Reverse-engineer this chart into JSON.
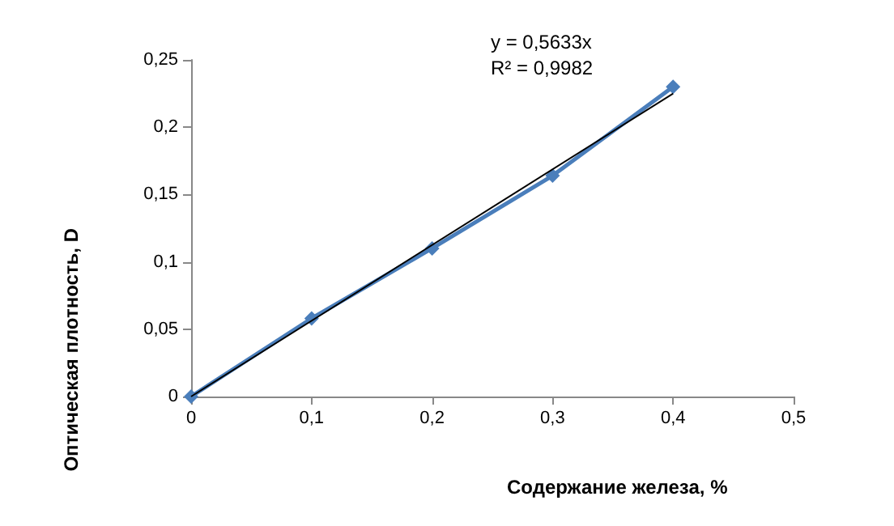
{
  "chart_data": {
    "type": "line",
    "xlabel": "Содержание железа, %",
    "ylabel": "Оптическая плотность, D",
    "annotations": [
      "y = 0,5633x",
      "R² = 0,9982"
    ],
    "marker": "diamond",
    "grid": false,
    "xlim": [
      0,
      0.5
    ],
    "xticks": [
      0,
      {
        "value": 0.1,
        "label": "0,1"
      },
      {
        "value": 0.2,
        "label": "0,2"
      },
      {
        "value": 0.3,
        "label": "0,3"
      },
      {
        "value": 0.4,
        "label": "0,4"
      },
      {
        "value": 0.5,
        "label": "0,5"
      }
    ],
    "ylim": [
      0,
      0.25
    ],
    "yticks": [
      0,
      {
        "value": 0.05,
        "label": "0,05"
      },
      {
        "value": 0.1,
        "label": "0,1"
      },
      {
        "value": 0.15,
        "label": "0,15"
      },
      {
        "value": 0.2,
        "label": "0,2"
      },
      {
        "value": 0.25,
        "label": "0,25"
      }
    ],
    "series": [
      {
        "color": "#4a7ebb",
        "x": [
          0,
          0.1,
          0.2,
          0.3,
          0.4
        ],
        "values": [
          0,
          0.058,
          0.11,
          0.164,
          0.23
        ]
      },
      {
        "type": "line",
        "color": "#000000",
        "x": [
          0,
          0.4
        ],
        "values": [
          0,
          0.225
        ],
        "marker": "none"
      }
    ]
  }
}
